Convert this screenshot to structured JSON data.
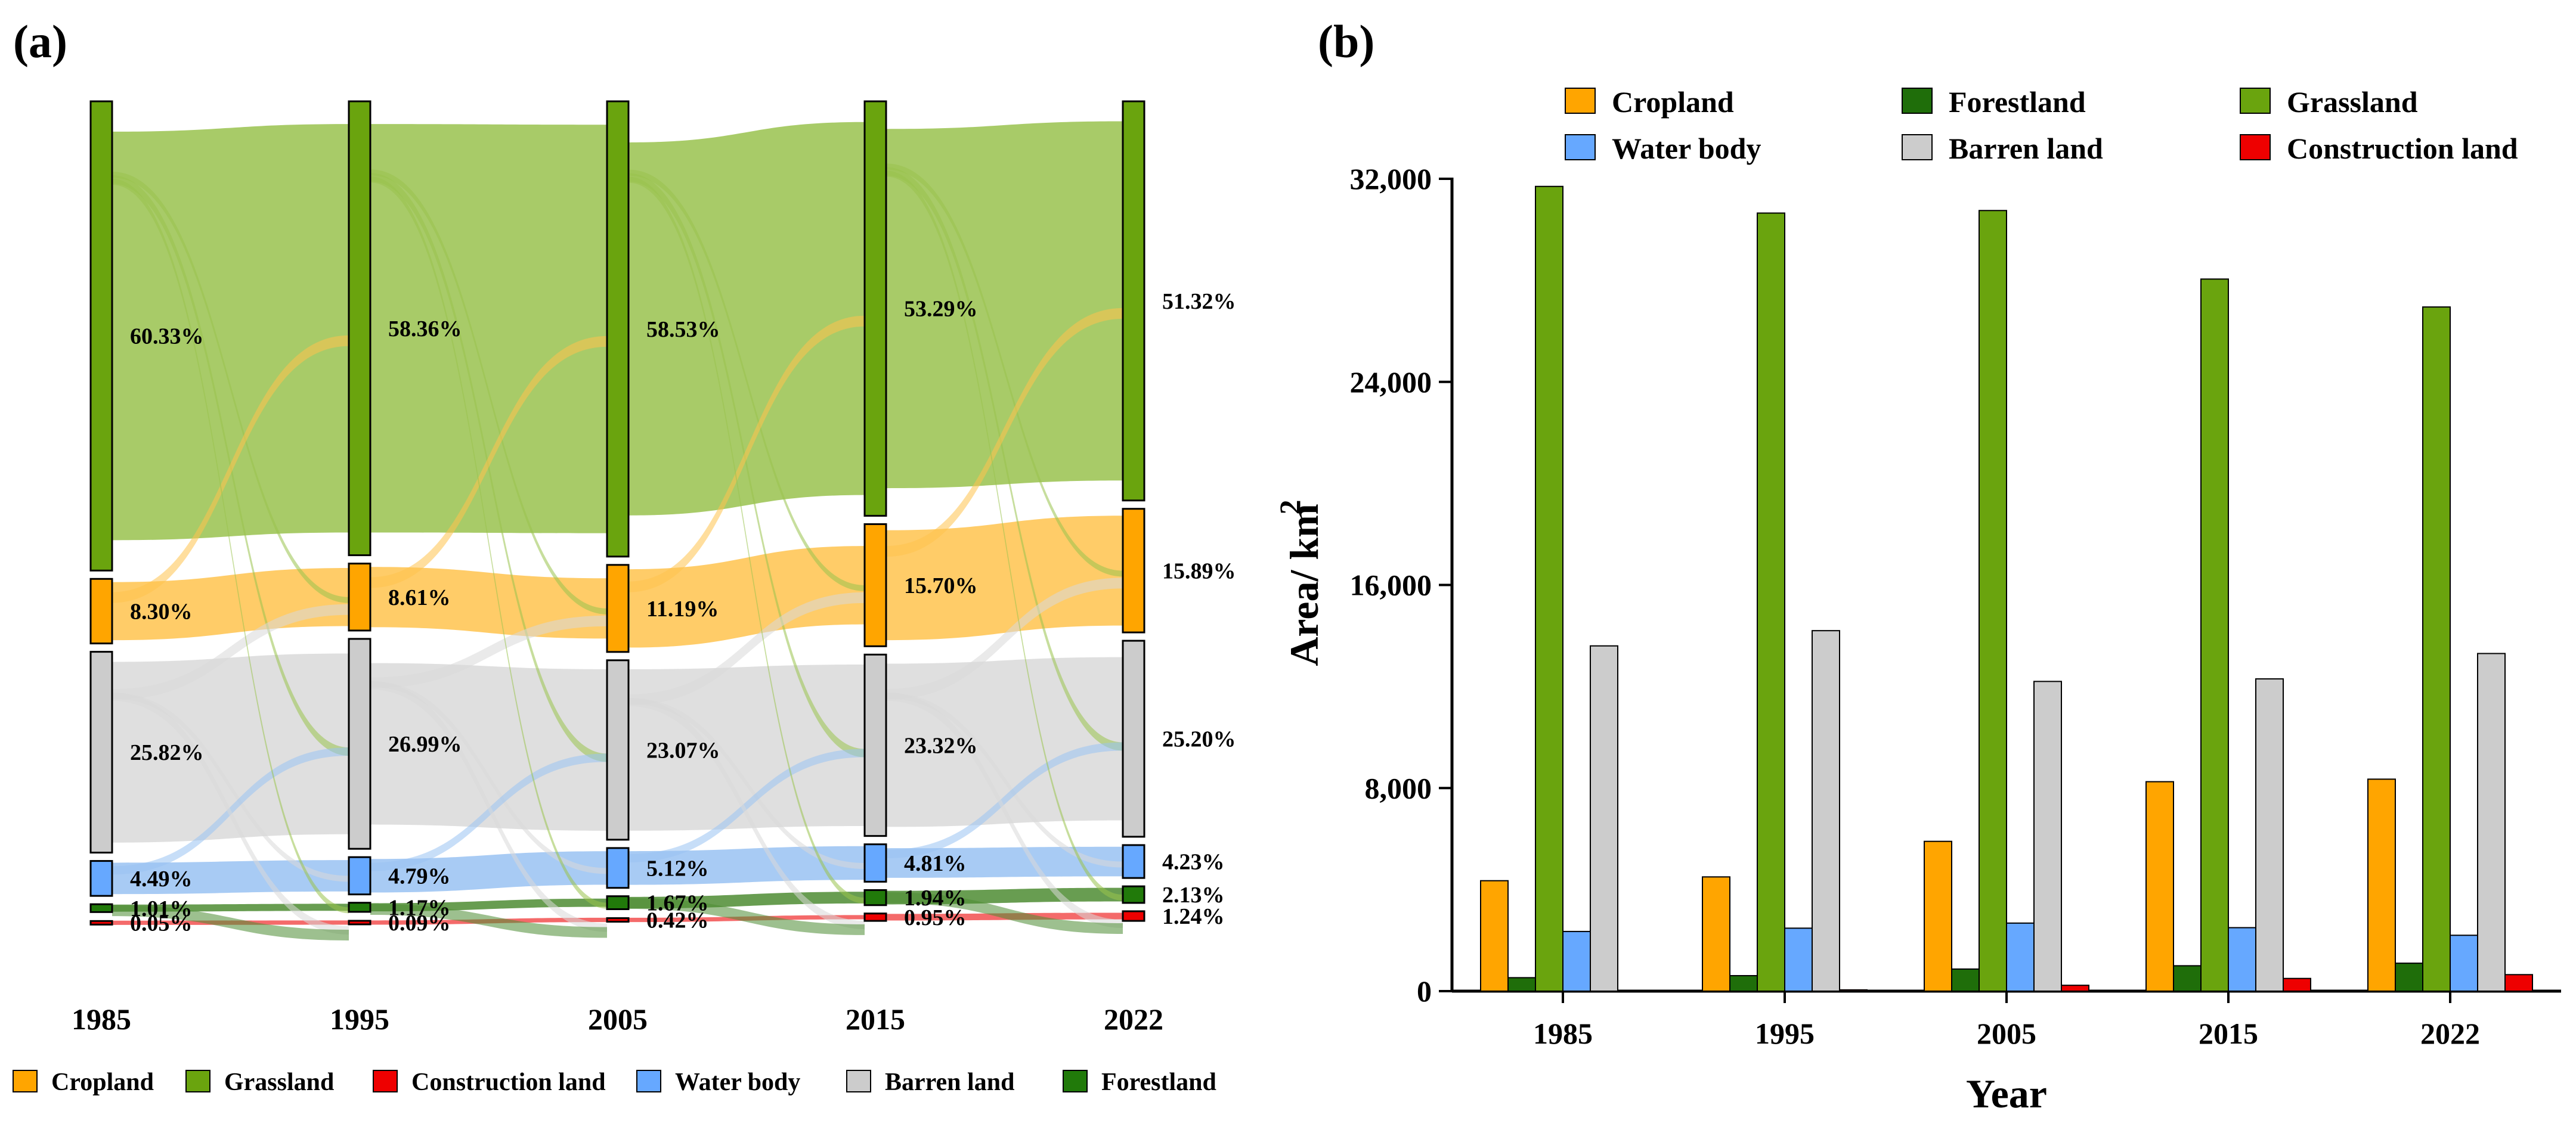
{
  "panels": {
    "a": "(a)",
    "b": "(b)"
  },
  "chart_data": [
    {
      "type": "sankey",
      "panel": "(a)",
      "years": [
        "1985",
        "1995",
        "2005",
        "2015",
        "2022"
      ],
      "categories": [
        {
          "key": "grassland",
          "name": "Grassland",
          "color": "#6aa40e",
          "flow_color": "#99c24d",
          "labels": [
            "60.33%",
            "58.36%",
            "58.53%",
            "53.29%",
            "51.32%"
          ],
          "values": [
            60.33,
            58.36,
            58.53,
            53.29,
            51.32
          ]
        },
        {
          "key": "cropland",
          "name": "Cropland",
          "color": "#ffa500",
          "flow_color": "#ffc34d",
          "labels": [
            "8.30%",
            "8.61%",
            "11.19%",
            "15.70%",
            "15.89%"
          ],
          "values": [
            8.3,
            8.61,
            11.19,
            15.7,
            15.89
          ]
        },
        {
          "key": "barren",
          "name": "Barren land",
          "color": "#cccccc",
          "flow_color": "#d9d9d9",
          "labels": [
            "25.82%",
            "26.99%",
            "23.07%",
            "23.32%",
            "25.20%"
          ],
          "values": [
            25.82,
            26.99,
            23.07,
            23.32,
            25.2
          ]
        },
        {
          "key": "water",
          "name": "Water body",
          "color": "#66a8ff",
          "flow_color": "#99c2f2",
          "labels": [
            "4.49%",
            "4.79%",
            "5.12%",
            "4.81%",
            "4.23%"
          ],
          "values": [
            4.49,
            4.79,
            5.12,
            4.81,
            4.23
          ]
        },
        {
          "key": "forest",
          "name": "Forestland",
          "color": "#217a0a",
          "flow_color": "#4d8c33",
          "labels": [
            "1.01%",
            "1.17%",
            "1.67%",
            "1.94%",
            "2.13%"
          ],
          "values": [
            1.01,
            1.17,
            1.67,
            1.94,
            2.13
          ]
        },
        {
          "key": "construction",
          "name": "Construction land",
          "color": "#ee0000",
          "flow_color": "#f25050",
          "labels": [
            "0.05%",
            "0.09%",
            "0.42%",
            "0.95%",
            "1.24%"
          ],
          "values": [
            0.05,
            0.09,
            0.42,
            0.95,
            1.24
          ]
        }
      ],
      "legend": [
        {
          "key": "cropland",
          "name": "Cropland",
          "color": "#ffa500"
        },
        {
          "key": "grassland",
          "name": "Grassland",
          "color": "#6aa40e"
        },
        {
          "key": "construction",
          "name": "Construction land",
          "color": "#ee0000"
        },
        {
          "key": "water",
          "name": "Water body",
          "color": "#66a8ff"
        },
        {
          "key": "barren",
          "name": "Barren land",
          "color": "#cccccc"
        },
        {
          "key": "forest",
          "name": "Forestland",
          "color": "#217a0a"
        }
      ]
    },
    {
      "type": "bar",
      "panel": "(b)",
      "categories": [
        "1985",
        "1995",
        "2005",
        "2015",
        "2022"
      ],
      "xlabel": "Year",
      "ylabel": "Area/ km",
      "ylabel_sup": "2",
      "ylim": [
        0,
        32000
      ],
      "yticks": [
        0,
        8000,
        16000,
        24000,
        32000
      ],
      "ytick_labels": [
        "0",
        "8,000",
        "16,000",
        "24,000",
        "32,000"
      ],
      "series": [
        {
          "name": "Cropland",
          "color": "#ffa500",
          "values": [
            4350,
            4500,
            5900,
            8250,
            8350
          ]
        },
        {
          "name": "Forestland",
          "color": "#1f6e0a",
          "values": [
            530,
            610,
            870,
            1000,
            1100
          ]
        },
        {
          "name": "Grassland",
          "color": "#6aa40e",
          "values": [
            31700,
            30650,
            30750,
            28050,
            26950
          ]
        },
        {
          "name": "Water body",
          "color": "#66a8ff",
          "values": [
            2350,
            2480,
            2680,
            2500,
            2200
          ]
        },
        {
          "name": "Barren land",
          "color": "#cccccc",
          "values": [
            13600,
            14200,
            12200,
            12300,
            13300
          ]
        },
        {
          "name": "Construction land",
          "color": "#ee0000",
          "values": [
            20,
            50,
            230,
            500,
            650
          ]
        }
      ],
      "legend": [
        {
          "name": "Cropland",
          "color": "#ffa500"
        },
        {
          "name": "Forestland",
          "color": "#1f6e0a"
        },
        {
          "name": "Grassland",
          "color": "#6aa40e"
        },
        {
          "name": "Water body",
          "color": "#66a8ff"
        },
        {
          "name": "Barren land",
          "color": "#cccccc"
        },
        {
          "name": "Construction land",
          "color": "#ee0000"
        }
      ]
    }
  ]
}
